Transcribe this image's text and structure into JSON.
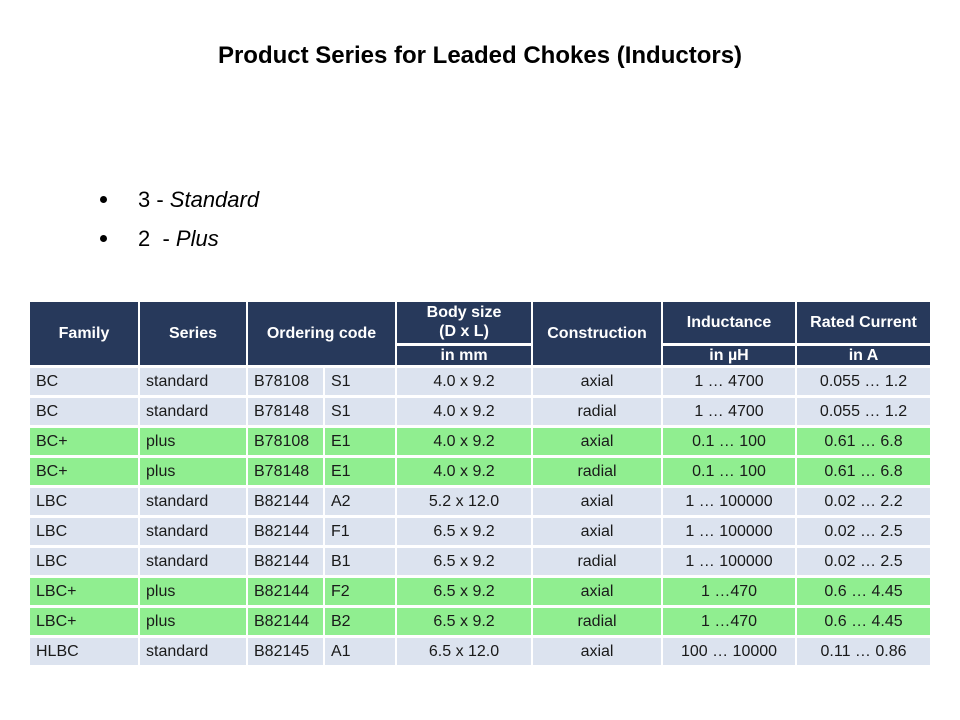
{
  "slide": {
    "title": "Product Series for Leaded Chokes (Inductors)",
    "bullets": [
      {
        "prefix": "3 - ",
        "emphasis": "Standard"
      },
      {
        "prefix": "2  - ",
        "emphasis": "Plus"
      }
    ]
  },
  "table": {
    "header": {
      "family": "Family",
      "series": "Series",
      "ordering_code": "Ordering code",
      "body_size_line1": "Body size",
      "body_size_line2": "(D x L)",
      "body_size_unit": "in mm",
      "construction": "Construction",
      "inductance": "Inductance",
      "inductance_unit": "in µH",
      "rated_current": "Rated Current",
      "rated_current_unit": "in A"
    },
    "row_columns": [
      {
        "key": "family",
        "align": "left"
      },
      {
        "key": "series",
        "align": "left"
      },
      {
        "key": "code",
        "align": "left"
      },
      {
        "key": "suffix",
        "align": "left"
      },
      {
        "key": "body_size",
        "align": "center"
      },
      {
        "key": "construction",
        "align": "center"
      },
      {
        "key": "inductance",
        "align": "center"
      },
      {
        "key": "rated_current",
        "align": "center"
      }
    ],
    "rows": [
      {
        "family": "BC",
        "series": "standard",
        "code": "B78108",
        "suffix": "S1",
        "body_size": "4.0 x 9.2",
        "construction": "axial",
        "inductance": "1 … 4700",
        "rated_current": "0.055 … 1.2",
        "highlight": false
      },
      {
        "family": "BC",
        "series": "standard",
        "code": "B78148",
        "suffix": "S1",
        "body_size": "4.0 x 9.2",
        "construction": "radial",
        "inductance": "1 … 4700",
        "rated_current": "0.055 … 1.2",
        "highlight": false
      },
      {
        "family": "BC+",
        "series": "plus",
        "code": "B78108",
        "suffix": "E1",
        "body_size": "4.0 x 9.2",
        "construction": "axial",
        "inductance": "0.1 … 100",
        "rated_current": "0.61 … 6.8",
        "highlight": true
      },
      {
        "family": "BC+",
        "series": "plus",
        "code": "B78148",
        "suffix": "E1",
        "body_size": "4.0 x 9.2",
        "construction": "radial",
        "inductance": "0.1 … 100",
        "rated_current": "0.61 … 6.8",
        "highlight": true
      },
      {
        "family": "LBC",
        "series": "standard",
        "code": "B82144",
        "suffix": "A2",
        "body_size": "5.2 x 12.0",
        "construction": "axial",
        "inductance": "1 … 100000",
        "rated_current": "0.02 … 2.2",
        "highlight": false
      },
      {
        "family": "LBC",
        "series": "standard",
        "code": "B82144",
        "suffix": "F1",
        "body_size": "6.5 x 9.2",
        "construction": "axial",
        "inductance": "1 … 100000",
        "rated_current": "0.02 … 2.5",
        "highlight": false
      },
      {
        "family": "LBC",
        "series": "standard",
        "code": "B82144",
        "suffix": "B1",
        "body_size": "6.5 x 9.2",
        "construction": "radial",
        "inductance": "1 … 100000",
        "rated_current": "0.02 … 2.5",
        "highlight": false
      },
      {
        "family": "LBC+",
        "series": "plus",
        "code": "B82144",
        "suffix": "F2",
        "body_size": "6.5 x 9.2",
        "construction": "axial",
        "inductance": "1 …470",
        "rated_current": "0.6 … 4.45",
        "highlight": true
      },
      {
        "family": "LBC+",
        "series": "plus",
        "code": "B82144",
        "suffix": "B2",
        "body_size": "6.5 x 9.2",
        "construction": "radial",
        "inductance": "1 …470",
        "rated_current": "0.6 … 4.45",
        "highlight": true
      },
      {
        "family": "HLBC",
        "series": "standard",
        "code": "B82145",
        "suffix": "A1",
        "body_size": "6.5 x 12.0",
        "construction": "axial",
        "inductance": "100 … 10000",
        "rated_current": "0.11 … 0.86",
        "highlight": false
      }
    ],
    "colors": {
      "header_bg": "#27395B",
      "header_text": "#FFFFFF",
      "row_bg": "#DCE3EF",
      "highlight_bg": "#90EE90",
      "row_text": "#1A1A1A"
    }
  }
}
